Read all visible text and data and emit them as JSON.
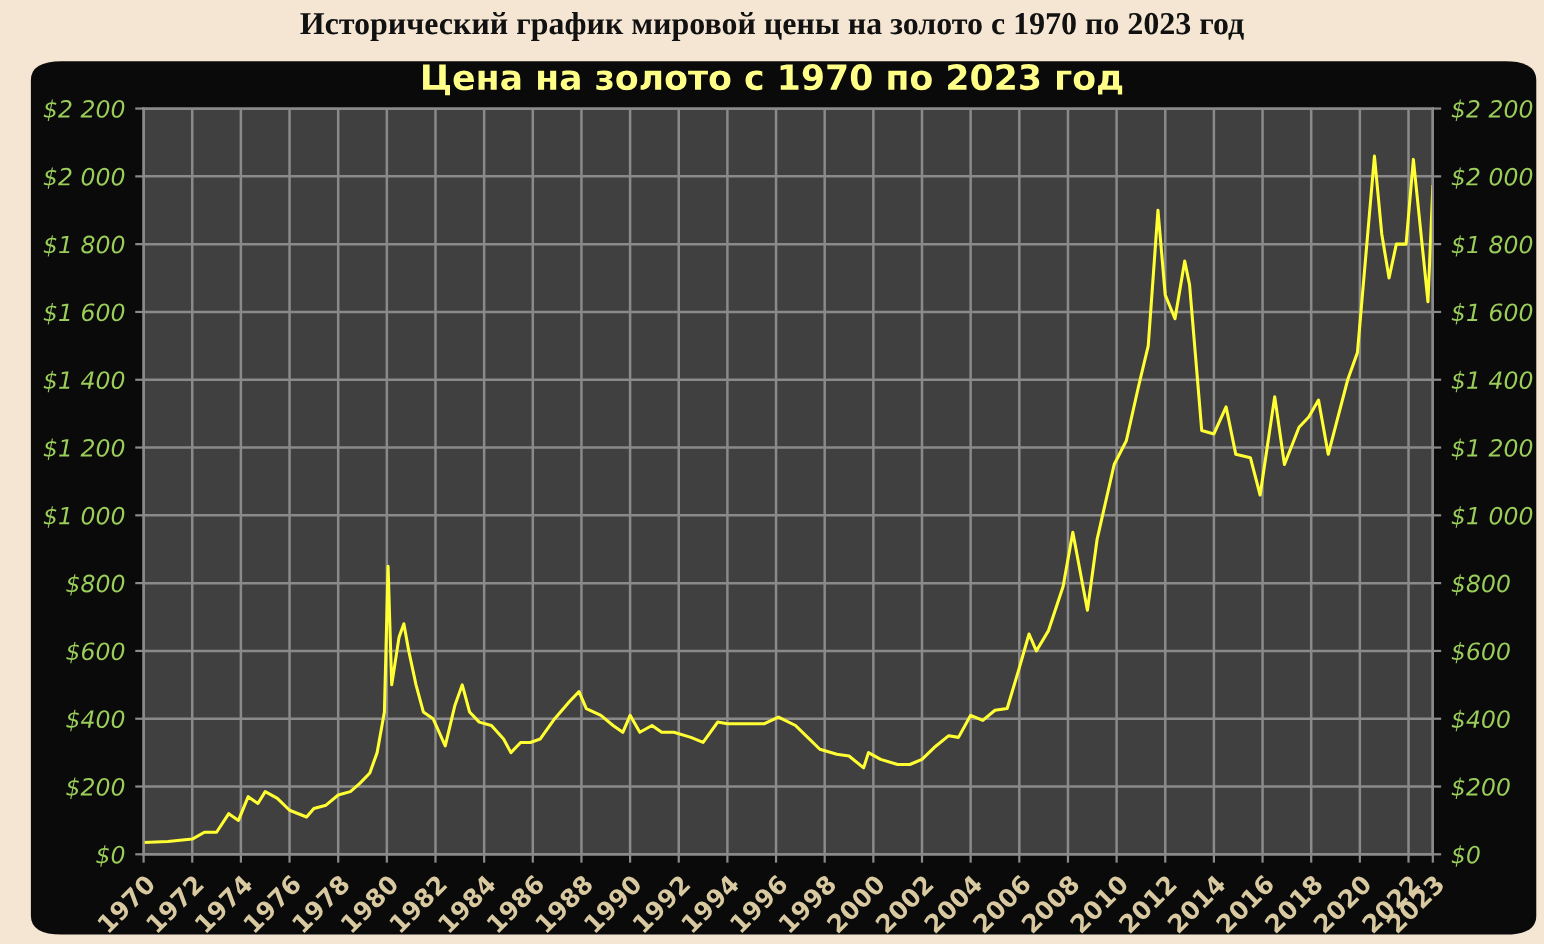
{
  "chart_data": {
    "type": "line",
    "title": "Исторический график мировой цены на золото с 1970 по 2023 год",
    "subtitle": "Цена на золото с 1970 по 2023 год",
    "series": [
      {
        "color": "#ffff33",
        "x": [
          1970.0,
          1971.0,
          1972.0,
          1972.5,
          1973.0,
          1973.5,
          1973.9,
          1974.3,
          1974.7,
          1975.0,
          1975.5,
          1976.0,
          1976.7,
          1977.0,
          1977.5,
          1978.0,
          1978.5,
          1978.9,
          1979.3,
          1979.6,
          1979.9,
          1980.05,
          1980.2,
          1980.5,
          1980.7,
          1980.9,
          1981.2,
          1981.5,
          1981.9,
          1982.4,
          1982.8,
          1983.1,
          1983.4,
          1983.8,
          1984.3,
          1984.8,
          1985.1,
          1985.5,
          1985.9,
          1986.3,
          1986.9,
          1987.5,
          1987.9,
          1988.2,
          1988.8,
          1989.3,
          1989.7,
          1990.0,
          1990.4,
          1990.9,
          1991.3,
          1991.8,
          1992.5,
          1993.0,
          1993.6,
          1994.0,
          1994.8,
          1995.5,
          1996.1,
          1996.8,
          1997.3,
          1997.8,
          1998.5,
          1999.0,
          1999.6,
          1999.8,
          2000.3,
          2001.0,
          2001.5,
          2002.0,
          2002.5,
          2003.1,
          2003.5,
          2004.0,
          2004.5,
          2005.0,
          2005.5,
          2006.0,
          2006.4,
          2006.7,
          2007.2,
          2007.8,
          2008.2,
          2008.8,
          2009.2,
          2009.9,
          2010.4,
          2010.9,
          2011.3,
          2011.7,
          2012.0,
          2012.4,
          2012.8,
          2013.0,
          2013.5,
          2014.0,
          2014.5,
          2014.9,
          2015.5,
          2015.9,
          2016.5,
          2016.9,
          2017.5,
          2017.9,
          2018.3,
          2018.7,
          2019.5,
          2019.9,
          2020.6,
          2020.9,
          2021.2,
          2021.5,
          2021.9,
          2022.2,
          2022.8,
          2023.0
        ],
        "values": [
          35,
          38,
          45,
          65,
          65,
          120,
          100,
          170,
          150,
          185,
          165,
          130,
          110,
          135,
          145,
          175,
          185,
          210,
          240,
          300,
          420,
          850,
          500,
          640,
          680,
          600,
          500,
          420,
          400,
          320,
          440,
          500,
          420,
          390,
          380,
          340,
          300,
          330,
          330,
          340,
          400,
          450,
          480,
          430,
          410,
          380,
          360,
          410,
          360,
          380,
          360,
          360,
          345,
          330,
          390,
          385,
          385,
          385,
          405,
          380,
          345,
          310,
          295,
          290,
          255,
          300,
          280,
          265,
          265,
          280,
          315,
          350,
          345,
          410,
          395,
          425,
          430,
          550,
          650,
          600,
          660,
          790,
          950,
          720,
          930,
          1150,
          1220,
          1380,
          1500,
          1900,
          1650,
          1580,
          1750,
          1680,
          1250,
          1240,
          1320,
          1180,
          1170,
          1060,
          1350,
          1150,
          1260,
          1290,
          1340,
          1180,
          1400,
          1480,
          2060,
          1830,
          1700,
          1800,
          1800,
          2050,
          1630,
          1970
        ]
      }
    ],
    "xlim": [
      1970,
      2023
    ],
    "xticks": [
      1970,
      1972,
      1974,
      1976,
      1978,
      1980,
      1982,
      1984,
      1986,
      1988,
      1990,
      1992,
      1994,
      1996,
      1998,
      2000,
      2002,
      2004,
      2006,
      2008,
      2010,
      2012,
      2014,
      2016,
      2018,
      2020,
      2022,
      2023
    ],
    "ylim": [
      0,
      2200
    ],
    "yticks": [
      {
        "value": 0,
        "label": "$0"
      },
      {
        "value": 200,
        "label": "$200"
      },
      {
        "value": 400,
        "label": "$400"
      },
      {
        "value": 600,
        "label": "$600"
      },
      {
        "value": 800,
        "label": "$800"
      },
      {
        "value": 1000,
        "label": "$1 000"
      },
      {
        "value": 1200,
        "label": "$1 200"
      },
      {
        "value": 1400,
        "label": "$1 400"
      },
      {
        "value": 1600,
        "label": "$1 600"
      },
      {
        "value": 1800,
        "label": "$1 800"
      },
      {
        "value": 2000,
        "label": "$2 000"
      },
      {
        "value": 2200,
        "label": "$2 200"
      }
    ],
    "y2lim": [
      0,
      2200
    ],
    "y2ticks": [
      {
        "value": 0,
        "label": "$0"
      },
      {
        "value": 200,
        "label": "$200"
      },
      {
        "value": 400,
        "label": "$400"
      },
      {
        "value": 600,
        "label": "$600"
      },
      {
        "value": 800,
        "label": "$800"
      },
      {
        "value": 1000,
        "label": "$1 000"
      },
      {
        "value": 1200,
        "label": "$1 200"
      },
      {
        "value": 1400,
        "label": "$1 400"
      },
      {
        "value": 1600,
        "label": "$1 600"
      },
      {
        "value": 1800,
        "label": "$1 800"
      },
      {
        "value": 2000,
        "label": "$2 000"
      },
      {
        "value": 2200,
        "label": "$2 200"
      }
    ],
    "grid": true,
    "marker": "none",
    "line_style": "solid"
  }
}
